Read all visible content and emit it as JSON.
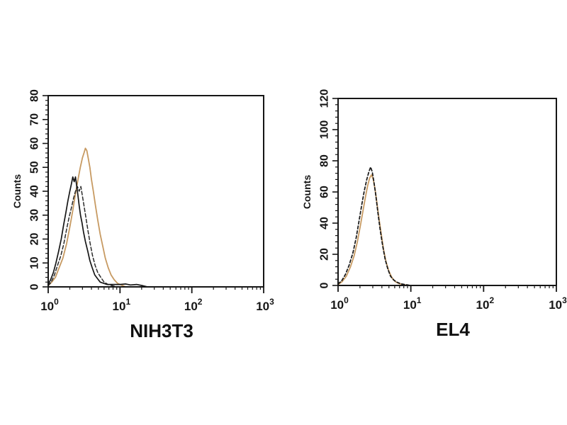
{
  "figure": {
    "background": "#ffffff",
    "axis_color": "#161616",
    "description": "Flow cytometry histogram overlays for two cell lines"
  },
  "chart_data": [
    {
      "type": "line",
      "id": "nih3t3-panel",
      "sample_label": "NIH3T3",
      "ylabel": "Counts",
      "xscale": "log",
      "xlim": [
        1,
        1000
      ],
      "ylim": [
        0,
        80
      ],
      "yticks": [
        0,
        10,
        20,
        30,
        40,
        50,
        60,
        70,
        80
      ],
      "ytick_minor_step": 2,
      "xtick_base": "10",
      "xtick_exponents": [
        "0",
        "1",
        "2",
        "3"
      ],
      "legend": "none",
      "grid": false,
      "series": [
        {
          "name": "orange-curve",
          "color": "#c79a62",
          "dash": "none",
          "width": 1.8,
          "points": [
            [
              1.0,
              0.5
            ],
            [
              1.12,
              2
            ],
            [
              1.26,
              4
            ],
            [
              1.42,
              8
            ],
            [
              1.6,
              12
            ],
            [
              1.8,
              18
            ],
            [
              2.0,
              25
            ],
            [
              2.2,
              32
            ],
            [
              2.4,
              39
            ],
            [
              2.6,
              45
            ],
            [
              2.8,
              50
            ],
            [
              3.0,
              54
            ],
            [
              3.15,
              56
            ],
            [
              3.3,
              58
            ],
            [
              3.45,
              57
            ],
            [
              3.6,
              54
            ],
            [
              3.8,
              50
            ],
            [
              4.0,
              45
            ],
            [
              4.25,
              40
            ],
            [
              4.55,
              34
            ],
            [
              4.9,
              28
            ],
            [
              5.3,
              22
            ],
            [
              5.75,
              17
            ],
            [
              6.25,
              12
            ],
            [
              6.85,
              8
            ],
            [
              7.5,
              5
            ],
            [
              8.3,
              3
            ],
            [
              9.2,
              1.5
            ],
            [
              10.5,
              0.7
            ],
            [
              12.0,
              0
            ]
          ]
        },
        {
          "name": "black-dashed-curve",
          "color": "#2a2a2a",
          "dash": "5,3",
          "width": 1.5,
          "points": [
            [
              1.0,
              0.5
            ],
            [
              1.1,
              2
            ],
            [
              1.22,
              5
            ],
            [
              1.35,
              9
            ],
            [
              1.5,
              13
            ],
            [
              1.65,
              18
            ],
            [
              1.8,
              24
            ],
            [
              1.95,
              29
            ],
            [
              2.1,
              33
            ],
            [
              2.25,
              37
            ],
            [
              2.4,
              40
            ],
            [
              2.55,
              42
            ],
            [
              2.7,
              40
            ],
            [
              2.85,
              42
            ],
            [
              3.0,
              38
            ],
            [
              3.15,
              34
            ],
            [
              3.35,
              29
            ],
            [
              3.6,
              23
            ],
            [
              3.85,
              18
            ],
            [
              4.15,
              13
            ],
            [
              4.5,
              9
            ],
            [
              4.9,
              6
            ],
            [
              5.4,
              4
            ],
            [
              6.0,
              2
            ],
            [
              6.8,
              1
            ],
            [
              7.8,
              0.5
            ],
            [
              9.0,
              0
            ]
          ]
        },
        {
          "name": "black-solid-curve",
          "color": "#161616",
          "dash": "none",
          "width": 1.7,
          "points": [
            [
              1.0,
              1
            ],
            [
              1.08,
              3
            ],
            [
              1.18,
              6
            ],
            [
              1.28,
              10
            ],
            [
              1.4,
              15
            ],
            [
              1.52,
              20
            ],
            [
              1.64,
              26
            ],
            [
              1.76,
              31
            ],
            [
              1.88,
              36
            ],
            [
              2.0,
              40
            ],
            [
              2.1,
              43
            ],
            [
              2.2,
              46
            ],
            [
              2.3,
              44
            ],
            [
              2.4,
              46
            ],
            [
              2.5,
              42
            ],
            [
              2.6,
              38
            ],
            [
              2.7,
              34
            ],
            [
              2.82,
              30
            ],
            [
              2.95,
              27
            ],
            [
              3.1,
              23
            ],
            [
              3.3,
              19
            ],
            [
              3.55,
              15
            ],
            [
              3.8,
              11
            ],
            [
              4.1,
              8
            ],
            [
              4.45,
              5
            ],
            [
              4.85,
              3.5
            ],
            [
              5.3,
              2
            ],
            [
              5.9,
              1.5
            ],
            [
              6.6,
              1
            ],
            [
              7.5,
              1
            ],
            [
              8.6,
              1
            ],
            [
              10.0,
              1
            ],
            [
              12.0,
              1.2
            ],
            [
              14.0,
              0.8
            ],
            [
              17.0,
              1
            ],
            [
              20.0,
              0.6
            ],
            [
              24.0,
              0
            ]
          ]
        }
      ]
    },
    {
      "type": "line",
      "id": "el4-panel",
      "sample_label": "EL4",
      "ylabel": "Counts",
      "xscale": "log",
      "xlim": [
        1,
        1000
      ],
      "ylim": [
        0,
        120
      ],
      "yticks": [
        0,
        20,
        40,
        60,
        80,
        100,
        120
      ],
      "ytick_minor_step": 4,
      "xtick_base": "10",
      "xtick_exponents": [
        "0",
        "1",
        "2",
        "3"
      ],
      "legend": "none",
      "grid": false,
      "series": [
        {
          "name": "orange-curve",
          "color": "#c79a62",
          "dash": "none",
          "width": 1.8,
          "points": [
            [
              1.0,
              0.5
            ],
            [
              1.14,
              2.5
            ],
            [
              1.3,
              6
            ],
            [
              1.48,
              12
            ],
            [
              1.66,
              19
            ],
            [
              1.84,
              28
            ],
            [
              2.02,
              38
            ],
            [
              2.2,
              48
            ],
            [
              2.38,
              57
            ],
            [
              2.55,
              64
            ],
            [
              2.72,
              69
            ],
            [
              2.88,
              71
            ],
            [
              3.05,
              68
            ],
            [
              3.22,
              62
            ],
            [
              3.42,
              53
            ],
            [
              3.65,
              43
            ],
            [
              3.92,
              33
            ],
            [
              4.22,
              23
            ],
            [
              4.58,
              15
            ],
            [
              5.0,
              9
            ],
            [
              5.5,
              5
            ],
            [
              6.1,
              2.5
            ],
            [
              6.9,
              1.2
            ],
            [
              8.0,
              0.5
            ],
            [
              9.5,
              0
            ]
          ]
        },
        {
          "name": "black-dashed-curve",
          "color": "#161616",
          "dash": "4,3",
          "width": 1.7,
          "points": [
            [
              1.0,
              1
            ],
            [
              1.12,
              3
            ],
            [
              1.26,
              7
            ],
            [
              1.42,
              13
            ],
            [
              1.6,
              21
            ],
            [
              1.78,
              31
            ],
            [
              1.95,
              42
            ],
            [
              2.12,
              52
            ],
            [
              2.3,
              61
            ],
            [
              2.48,
              68
            ],
            [
              2.65,
              73
            ],
            [
              2.8,
              76
            ],
            [
              2.95,
              73
            ],
            [
              3.1,
              67
            ],
            [
              3.3,
              58
            ],
            [
              3.52,
              47
            ],
            [
              3.78,
              36
            ],
            [
              4.08,
              26
            ],
            [
              4.42,
              17
            ],
            [
              4.8,
              11
            ],
            [
              5.25,
              6
            ],
            [
              5.8,
              3.5
            ],
            [
              6.5,
              2
            ],
            [
              7.4,
              1
            ],
            [
              8.6,
              0.5
            ],
            [
              10.0,
              0
            ]
          ]
        }
      ]
    }
  ]
}
